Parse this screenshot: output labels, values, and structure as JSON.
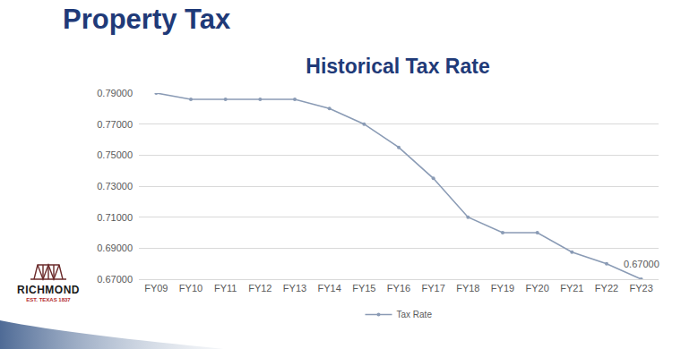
{
  "header": {
    "title": "Property Tax"
  },
  "logo": {
    "name": "RICHMOND",
    "tagline": "EST. TEXAS 1837"
  },
  "chart_data": {
    "type": "line",
    "title": "Historical Tax Rate",
    "categories": [
      "FY09",
      "FY10",
      "FY11",
      "FY12",
      "FY13",
      "FY14",
      "FY15",
      "FY16",
      "FY17",
      "FY18",
      "FY19",
      "FY20",
      "FY21",
      "FY22",
      "FY23"
    ],
    "series": [
      {
        "name": "Tax Rate",
        "color": "#8a9bb5",
        "values": [
          0.79,
          0.786,
          0.786,
          0.786,
          0.786,
          0.78,
          0.77,
          0.755,
          0.735,
          0.71,
          0.7,
          0.7,
          0.6875,
          0.68,
          0.67
        ],
        "marker": "circle",
        "line_style": "solid"
      }
    ],
    "ylim": [
      0.67,
      0.79
    ],
    "yticks": [
      {
        "value": 0.67,
        "label": "0.67000"
      },
      {
        "value": 0.69,
        "label": "0.69000"
      },
      {
        "value": 0.71,
        "label": "0.71000"
      },
      {
        "value": 0.73,
        "label": "0.73000"
      },
      {
        "value": 0.75,
        "label": "0.75000"
      },
      {
        "value": 0.77,
        "label": "0.77000"
      },
      {
        "value": 0.79,
        "label": "0.79000"
      }
    ],
    "grid": true,
    "legend": "bottom",
    "annotations": [
      {
        "category": "FY23",
        "text": "0.67000"
      }
    ]
  }
}
